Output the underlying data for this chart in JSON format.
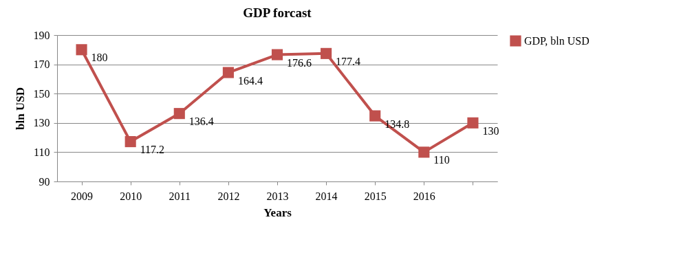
{
  "chart_data": {
    "type": "line",
    "title": "GDP forcast",
    "xlabel": "Years",
    "ylabel": "bln USD",
    "categories": [
      "2009",
      "2010",
      "2011",
      "2012",
      "2013",
      "2014",
      "2015",
      "2016",
      null
    ],
    "series": [
      {
        "name": "GDP, bln USD",
        "color": "#c0504d",
        "values": [
          180,
          117.2,
          136.4,
          164.4,
          176.6,
          177.4,
          134.8,
          110,
          130
        ]
      }
    ],
    "ylim": [
      90,
      190
    ],
    "yticks": [
      90,
      110,
      130,
      150,
      170,
      190
    ],
    "grid": "y",
    "legend": "right",
    "marker": "square",
    "data_labels": true
  }
}
